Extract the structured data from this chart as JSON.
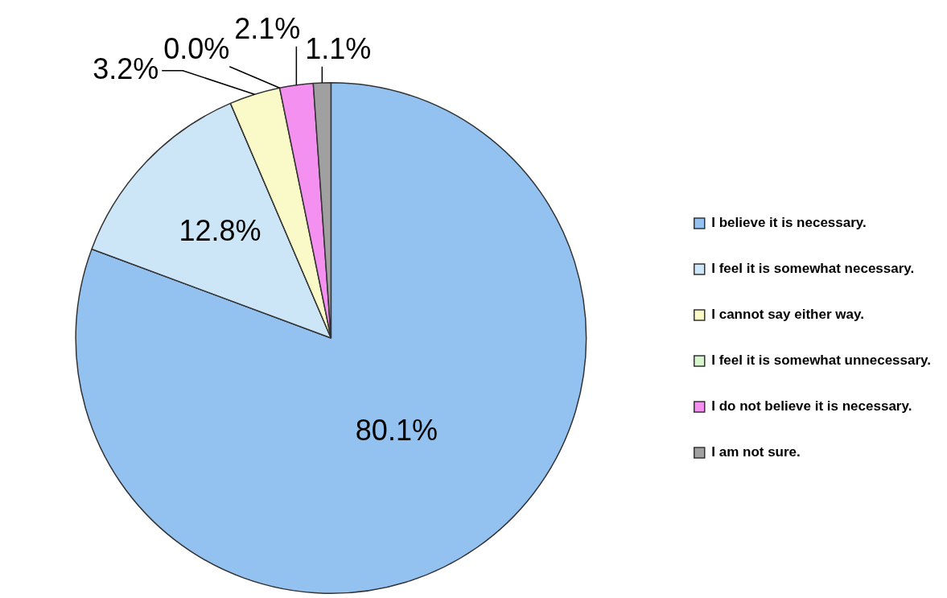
{
  "chart_data": {
    "type": "pie",
    "categories": [
      "I believe it is necessary.",
      "I feel it is somewhat necessary.",
      "I cannot say either way.",
      "I feel it is somewhat unnecessary.",
      "I do not believe it is necessary.",
      "I am not sure."
    ],
    "values": [
      80.1,
      12.8,
      3.2,
      0.0,
      2.1,
      1.1
    ],
    "value_labels": [
      "80.1%",
      "12.8%",
      "3.2%",
      "0.0%",
      "2.1%",
      "1.1%"
    ],
    "colors": [
      "#93c2f1",
      "#cce6f7",
      "#fafac8",
      "#d6f5cc",
      "#f490f0",
      "#a0a0a0"
    ],
    "legend": "right"
  }
}
